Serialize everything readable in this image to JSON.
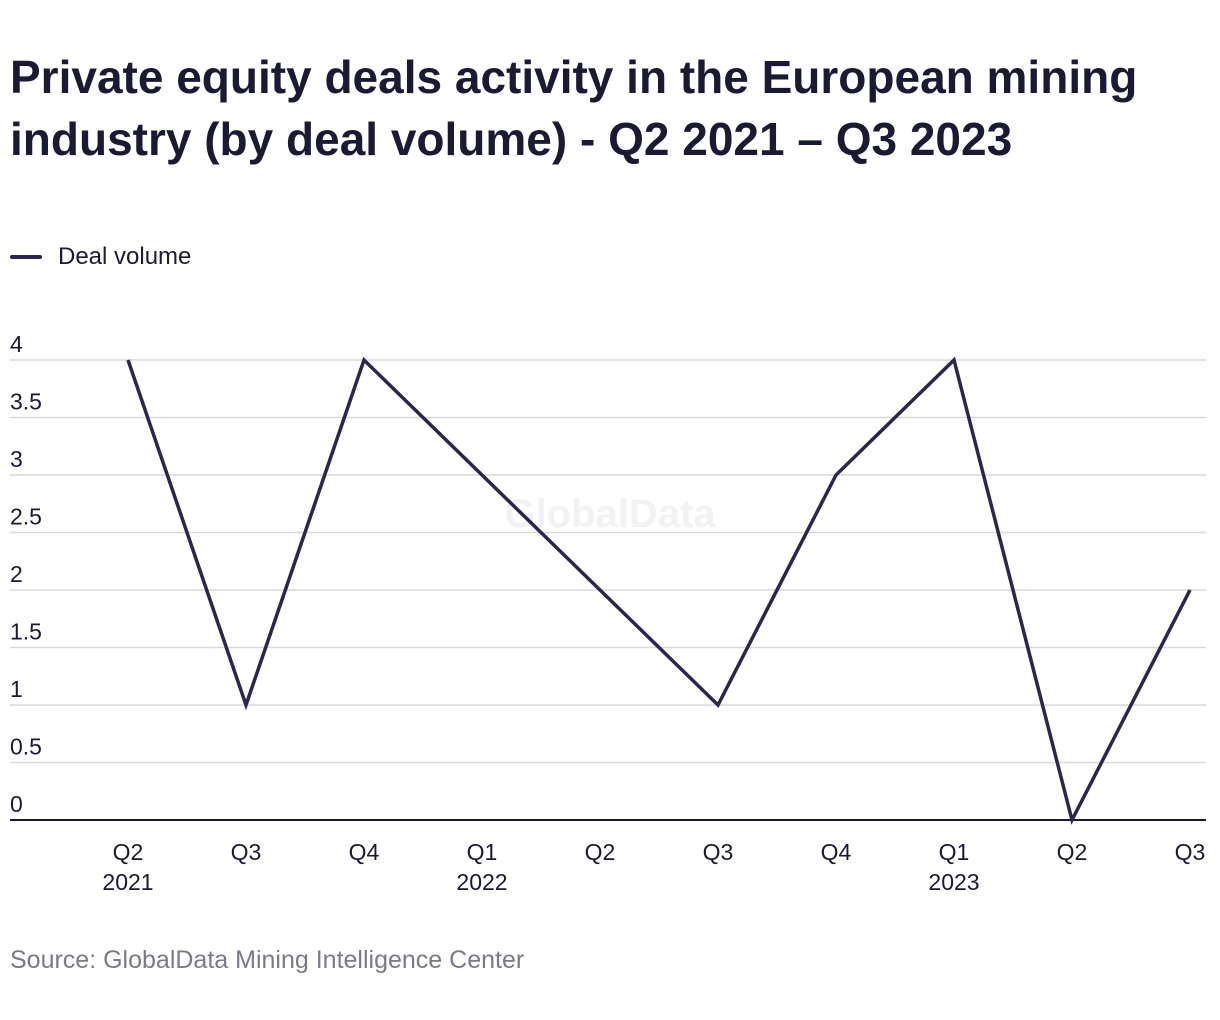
{
  "title": "Private equity deals activity in the European mining industry (by deal volume) - Q2 2021 – Q3 2023",
  "source": "Source: GlobalData Mining Intelligence Center",
  "watermark": "GlobalData",
  "colors": {
    "line": "#2e2450",
    "grid": "#d9d9d9",
    "axis": "#1b1a33",
    "watermark": "#f2f2f4"
  },
  "chart_data": {
    "type": "line",
    "categories": [
      "Q2 2021",
      "Q3 2021",
      "Q4 2021",
      "Q1 2022",
      "Q2 2022",
      "Q3 2022",
      "Q4 2022",
      "Q1 2023",
      "Q2 2023",
      "Q3 2023"
    ],
    "x_tick_labels": [
      [
        "Q2",
        "2021"
      ],
      [
        "Q3",
        ""
      ],
      [
        "Q4",
        ""
      ],
      [
        "Q1",
        "2022"
      ],
      [
        "Q2",
        ""
      ],
      [
        "Q3",
        ""
      ],
      [
        "Q4",
        ""
      ],
      [
        "Q1",
        "2023"
      ],
      [
        "Q2",
        ""
      ],
      [
        "Q3",
        ""
      ]
    ],
    "series": [
      {
        "name": "Deal volume",
        "values": [
          4,
          1,
          4,
          3,
          2,
          1,
          3,
          4,
          0,
          2
        ]
      }
    ],
    "yticks": [
      0,
      0.5,
      1,
      1.5,
      2,
      2.5,
      3,
      3.5,
      4
    ],
    "ytick_labels": [
      "0",
      "0.5",
      "1",
      "1.5",
      "2",
      "2.5",
      "3",
      "3.5",
      "4"
    ],
    "ylim": [
      0,
      4
    ],
    "grid": true,
    "legend": "top-left"
  }
}
